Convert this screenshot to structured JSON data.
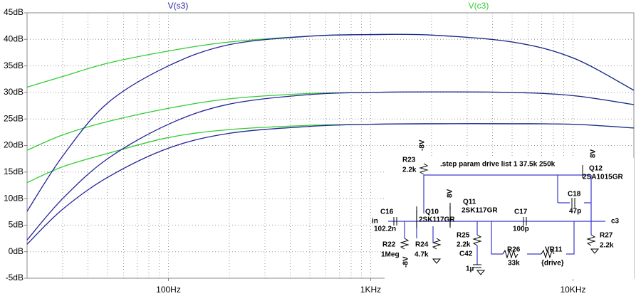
{
  "chart_data": {
    "type": "line",
    "x": [
      20,
      30,
      50,
      100,
      200,
      500,
      1000,
      2000,
      5000,
      10000,
      20000
    ],
    "xlim": [
      20,
      20000
    ],
    "log_x": true,
    "xticks": [
      {
        "value": 100,
        "label": "100Hz"
      },
      {
        "value": 1000,
        "label": "1KHz"
      },
      {
        "value": 10000,
        "label": "10KHz"
      }
    ],
    "xminorticks": [
      30,
      40,
      50,
      60,
      70,
      80,
      90,
      200,
      300,
      400,
      500,
      600,
      700,
      800,
      900,
      2000,
      3000,
      4000,
      5000,
      6000,
      7000,
      8000,
      9000
    ],
    "ylim": [
      -5,
      45
    ],
    "yticks": [
      {
        "value": -5,
        "label": "-5dB"
      },
      {
        "value": 0,
        "label": "0dB"
      },
      {
        "value": 5,
        "label": "5dB"
      },
      {
        "value": 10,
        "label": "10dB"
      },
      {
        "value": 15,
        "label": "15dB"
      },
      {
        "value": 20,
        "label": "20dB"
      },
      {
        "value": 25,
        "label": "25dB"
      },
      {
        "value": 30,
        "label": "30dB"
      },
      {
        "value": 35,
        "label": "35dB"
      },
      {
        "value": 40,
        "label": "40dB"
      },
      {
        "value": 45,
        "label": "45dB"
      }
    ],
    "grid": true,
    "series": [
      {
        "name": "V(s3)",
        "color": "#24249a",
        "values": [
          [
            7.6,
            18,
            28,
            35,
            39,
            40.6,
            40.9,
            40.8,
            39.5,
            36.5,
            30.4
          ],
          [
            2.2,
            10,
            17.5,
            24,
            27.8,
            29.6,
            30,
            30.1,
            30,
            29.4,
            27.7
          ],
          [
            1.4,
            8,
            14,
            19.5,
            22.3,
            23.6,
            24,
            24.1,
            24.1,
            24,
            23.3
          ]
        ]
      },
      {
        "name": "V(c3)",
        "color": "#33cc33",
        "values": [
          [
            31,
            33,
            35.5,
            37.8,
            39.5,
            40.6,
            40.9,
            40.8,
            39.5,
            36.5,
            30.4
          ],
          [
            19.1,
            22,
            24.5,
            27,
            28.8,
            29.8,
            30,
            30.1,
            30,
            29.4,
            27.7
          ],
          [
            13,
            16,
            18.5,
            21.5,
            23,
            23.8,
            24,
            24.1,
            24.1,
            24,
            23.3
          ]
        ]
      }
    ]
  },
  "schematic": {
    "labels": [
      ".step param drive list 1 37.5k 250k",
      "R23",
      "2.2k",
      "-8V",
      "Q12",
      "2SA1015GR",
      "8V",
      "C18",
      "47p",
      "Q11",
      "2SK117GR",
      "8V",
      "Q10",
      "2SK117GR",
      "C16",
      "102.2n",
      "in",
      "C17",
      "100p",
      "c3",
      "R22",
      "1Meg",
      "-8V",
      "R24",
      "4.7k",
      "R25",
      "2.2k",
      "C42",
      "1µ",
      "R26",
      "33k",
      "VR11",
      "{drive}",
      "R27",
      "2.2k"
    ]
  }
}
